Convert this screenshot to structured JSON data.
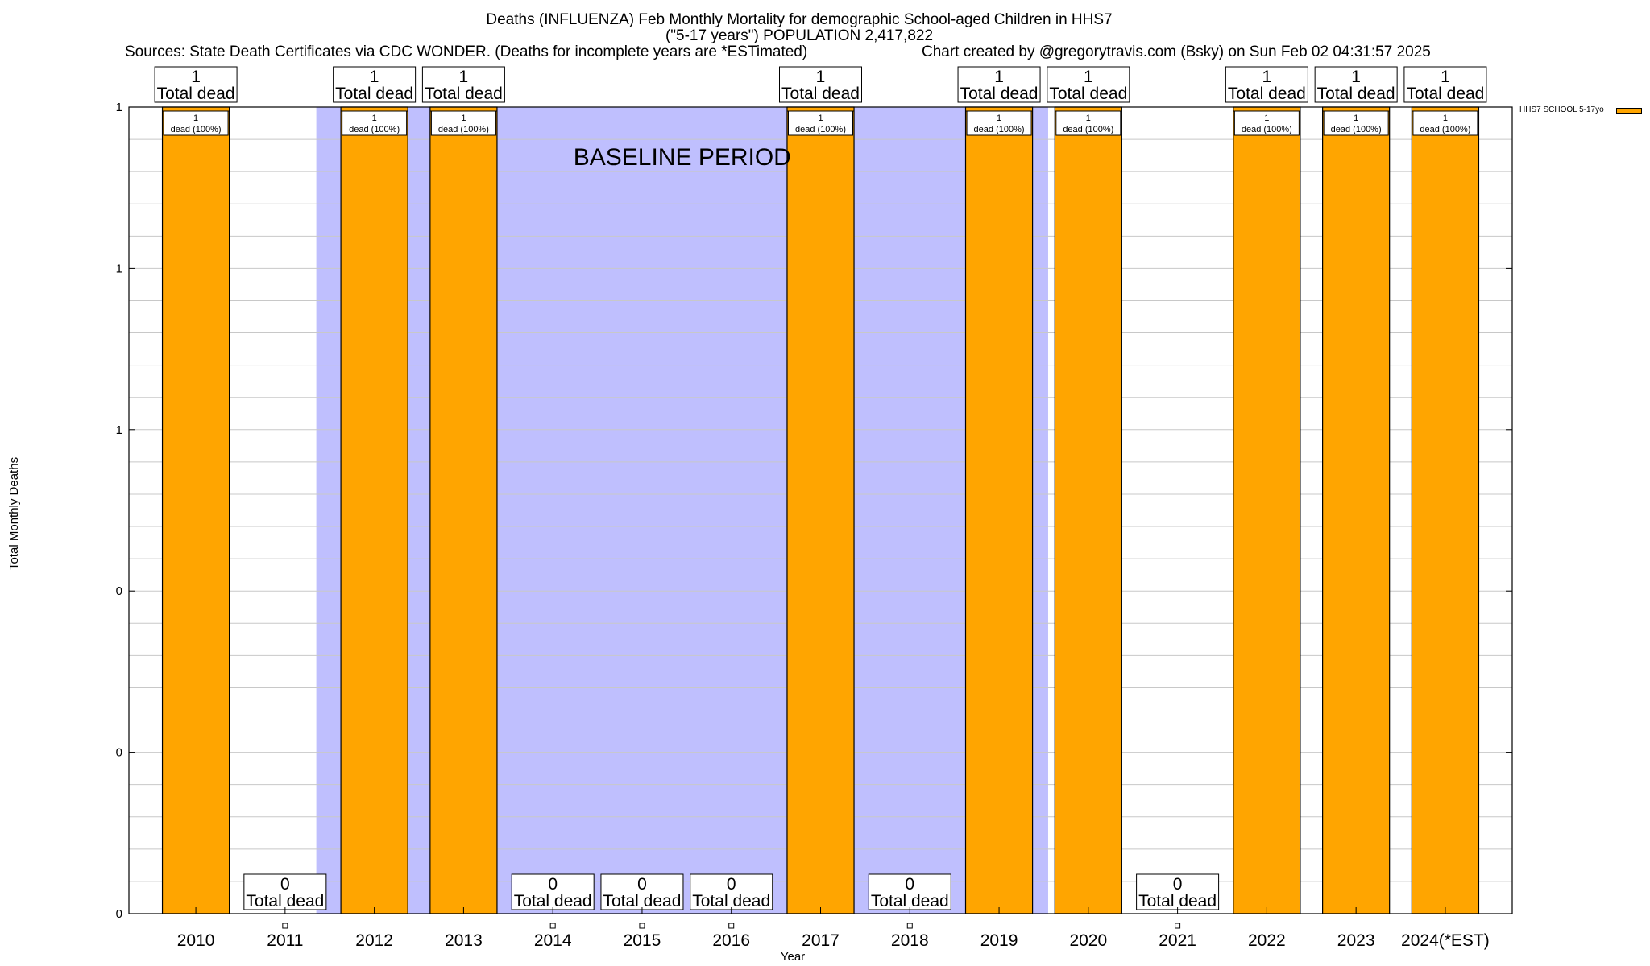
{
  "title_lines": [
    "Deaths (INFLUENZA) Feb Monthly Mortality for demographic School-aged Children in HHS7",
    "(\"5-17 years\") POPULATION 2,417,822"
  ],
  "sources_text": "Sources: State Death Certificates via CDC WONDER. (Deaths for incomplete years are *ESTimated)",
  "credit_text": "Chart created by @gregorytravis.com (Bsky) on Sun Feb 02 04:31:57 2025",
  "colors": {
    "bar": "#ffa500",
    "baseline_shade": "#bfbffe",
    "grid": "#c8c8c8",
    "axis": "#000000",
    "background": "#ffffff"
  },
  "chart_data": {
    "type": "bar",
    "title": "Deaths (INFLUENZA) Feb Monthly Mortality for demographic School-aged Children in HHS7",
    "xlabel": "Year",
    "ylabel": "Total Monthly Deaths",
    "ylim": [
      0,
      1
    ],
    "y_ticks": [
      {
        "value": 0,
        "label": "0"
      },
      {
        "value": 0.2,
        "label": "0"
      },
      {
        "value": 0.4,
        "label": "0"
      },
      {
        "value": 0.6,
        "label": "1"
      },
      {
        "value": 0.8,
        "label": "1"
      },
      {
        "value": 1,
        "label": "1"
      }
    ],
    "minor_y_gridlines": 25,
    "categories": [
      "2010",
      "2011",
      "2012",
      "2013",
      "2014",
      "2015",
      "2016",
      "2017",
      "2018",
      "2019",
      "2020",
      "2021",
      "2022",
      "2023",
      "2024(*EST)"
    ],
    "values": [
      1,
      0,
      1,
      1,
      0,
      0,
      0,
      1,
      0,
      1,
      1,
      0,
      1,
      1,
      1
    ],
    "total_label_suffix": "Total dead",
    "segment_label_suffix": "dead (100%)",
    "baseline_period": {
      "label": "BASELINE PERIOD",
      "range": [
        "2012",
        "2019"
      ]
    },
    "legend": {
      "position": "top-right",
      "series_name": "HHS7 SCHOOL 5-17yo"
    },
    "grid": true
  }
}
